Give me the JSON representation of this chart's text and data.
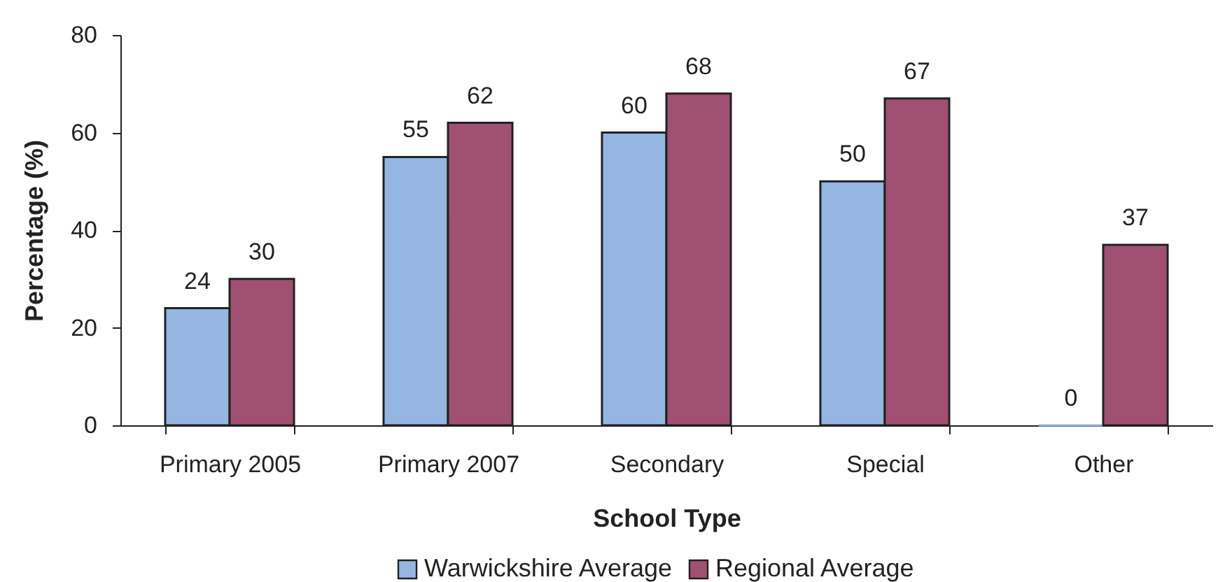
{
  "chart_data": {
    "type": "bar",
    "xlabel": "School Type",
    "ylabel": "Percentage (%)",
    "categories": [
      "Primary 2005",
      "Primary 2007",
      "Secondary",
      "Special",
      "Other"
    ],
    "series": [
      {
        "name": "Warwickshire Average",
        "color": "#95b6e0",
        "values": [
          24,
          55,
          60,
          50,
          0
        ]
      },
      {
        "name": "Regional Average",
        "color": "#a05072",
        "values": [
          30,
          62,
          68,
          67,
          37
        ]
      }
    ],
    "ylim": [
      0,
      80
    ],
    "yticks": [
      0,
      20,
      40,
      60,
      80
    ],
    "grid": false,
    "legend": "bottom",
    "data_labels": true
  }
}
